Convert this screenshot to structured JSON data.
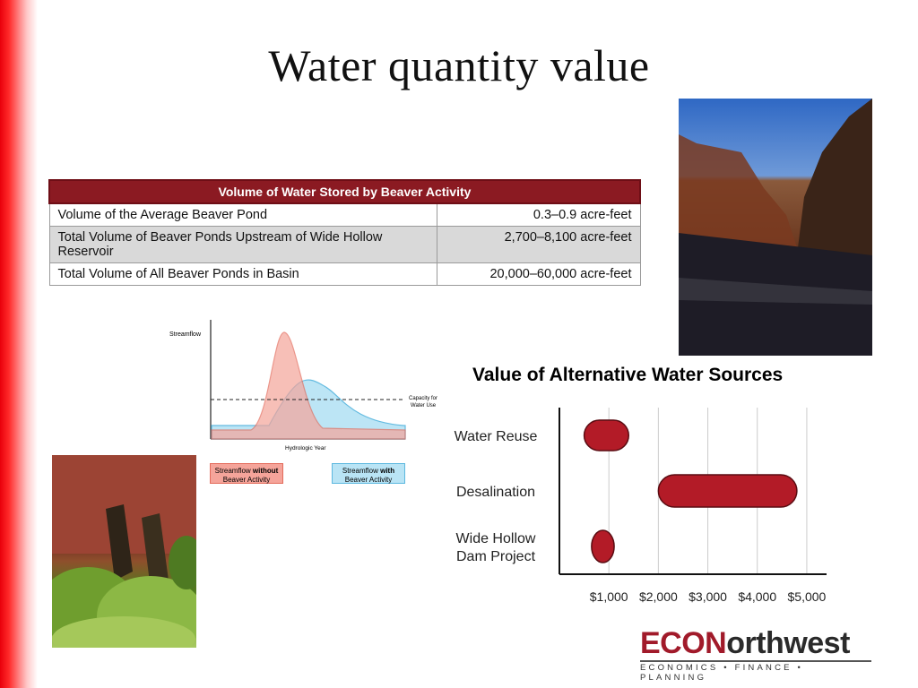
{
  "slide": {
    "title": "Water quantity value"
  },
  "table": {
    "header": "Volume of Water Stored by Beaver Activity",
    "rows": [
      {
        "label": "Volume of the Average Beaver Pond",
        "value": "0.3–0.9 acre-feet"
      },
      {
        "label": "Total Volume of Beaver Ponds Upstream of Wide Hollow Reservoir",
        "value": "2,700–8,100 acre-feet"
      },
      {
        "label": "Total Volume of All Beaver Ponds in Basin",
        "value": "20,000–60,000 acre-feet"
      }
    ]
  },
  "streamflow_diagram": {
    "y_label": "Streamflow",
    "x_label": "Hydrologic Year",
    "capacity_label_line1": "Capacity for",
    "capacity_label_line2": "Water Use",
    "legend_without_prefix": "Streamflow ",
    "legend_without_bold": "without",
    "legend_without_suffix": "Beaver Activity",
    "legend_with_prefix": "Streamflow ",
    "legend_with_bold": "with",
    "legend_with_suffix": "Beaver Activity",
    "colors": {
      "without": "#f5a49a",
      "with": "#b9e4f5"
    }
  },
  "value_chart": {
    "title": "Value of Alternative Water Sources"
  },
  "chart_data": {
    "type": "bar",
    "categories": [
      "Water Reuse",
      "Desalination",
      "Wide Hollow Dam Project"
    ],
    "ranges": [
      [
        500,
        1400
      ],
      [
        2000,
        4800
      ],
      [
        650,
        950
      ]
    ],
    "tick_labels": [
      "$1,000",
      "$2,000",
      "$3,000",
      "$4,000",
      "$5,000"
    ],
    "ticks": [
      1000,
      2000,
      3000,
      4000,
      5000
    ],
    "xlim": [
      0,
      5400
    ],
    "grid": true,
    "bar_color": "#b31b27"
  },
  "logo": {
    "part1": "ECON",
    "part2": "orthwest",
    "tagline": "ECONOMICS • FINANCE • PLANNING"
  },
  "images": {
    "top_right": "canyon river photo",
    "bottom_left": "red rock cliff with vegetation photo"
  }
}
